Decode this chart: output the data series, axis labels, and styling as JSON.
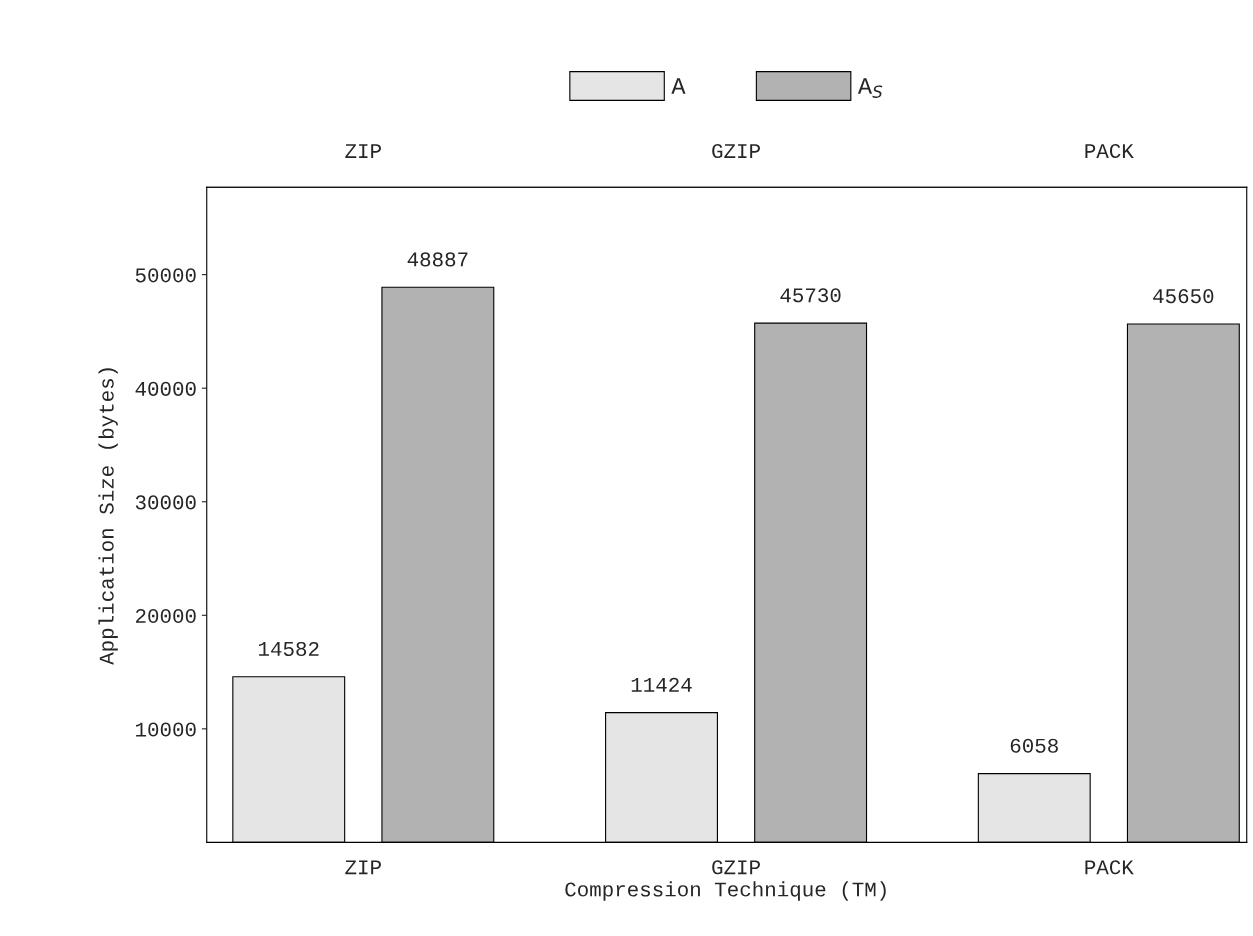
{
  "chart_data": {
    "type": "bar",
    "xlabel": "Compression Technique (TM)",
    "ylabel": "Application Size (bytes)",
    "categories": [
      "ZIP",
      "GZIP",
      "PACK"
    ],
    "series": [
      {
        "name": "A",
        "color": "#e5e5e5",
        "values": [
          14582,
          11424,
          6058
        ]
      },
      {
        "name": "A$_{S}$",
        "color": "#b2b2b2",
        "values": [
          48887,
          45730,
          45650
        ]
      }
    ],
    "ylim": [
      0,
      57700
    ],
    "yticks": [
      10000,
      20000,
      30000,
      40000,
      50000
    ],
    "data_labels": true,
    "legend": "top",
    "grid": false
  }
}
